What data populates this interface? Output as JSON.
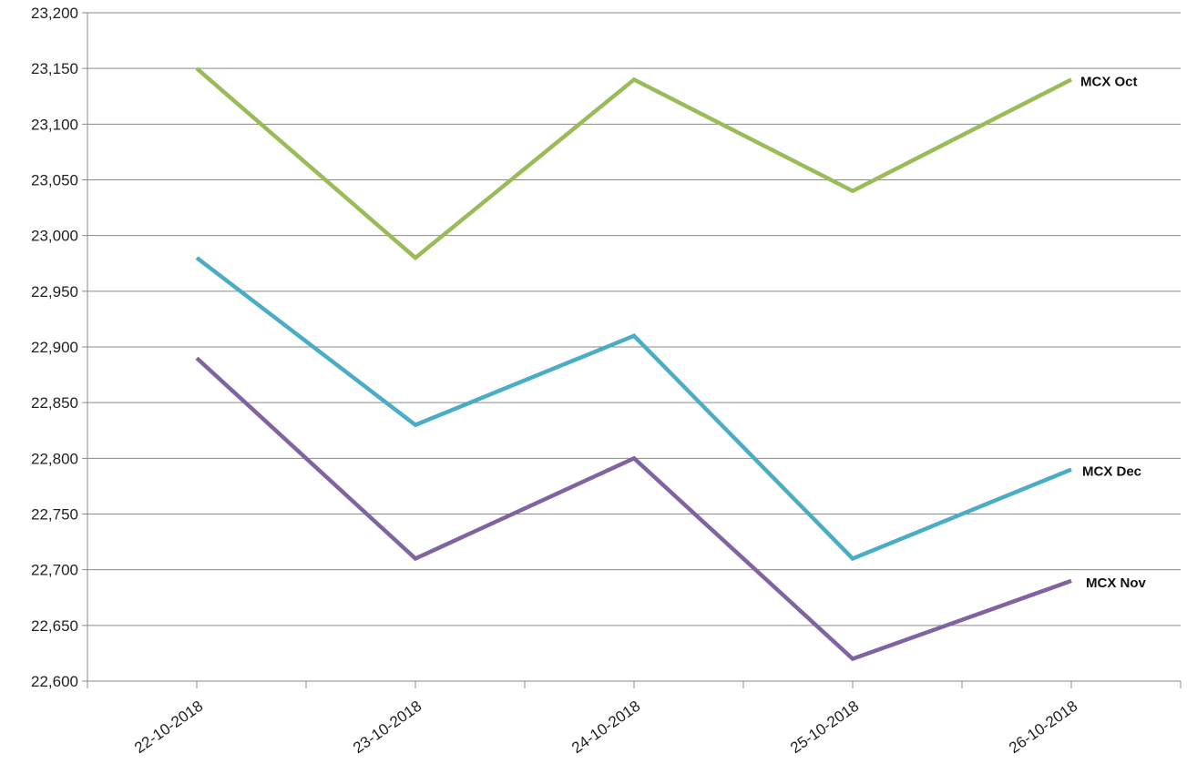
{
  "chart_data": {
    "type": "line",
    "title": "",
    "xlabel": "",
    "ylabel": "",
    "categories": [
      "22-10-2018",
      "23-10-2018",
      "24-10-2018",
      "25-10-2018",
      "26-10-2018"
    ],
    "ylim": [
      22600,
      23200
    ],
    "ytick_step": 50,
    "ytick_labels": [
      "22,600",
      "22,650",
      "22,700",
      "22,750",
      "22,800",
      "22,850",
      "22,900",
      "22,950",
      "23,000",
      "23,050",
      "23,100",
      "23,150",
      "23,200"
    ],
    "grid": "horizontal",
    "legend": "none (series labeled at line ends)",
    "series": [
      {
        "name": "MCX Oct",
        "color": "#9bbb59",
        "values": [
          23150,
          22980,
          23140,
          23040,
          23140
        ]
      },
      {
        "name": "MCX Dec",
        "color": "#4bacc6",
        "values": [
          22980,
          22830,
          22910,
          22710,
          22790
        ]
      },
      {
        "name": "MCX Nov",
        "color": "#8064a2",
        "values": [
          22890,
          22710,
          22800,
          22620,
          22690
        ]
      }
    ]
  }
}
